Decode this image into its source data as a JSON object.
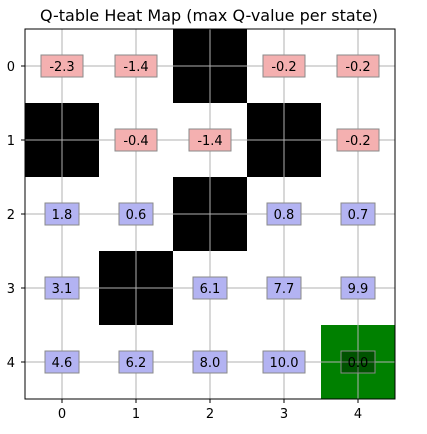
{
  "chart_data": {
    "type": "heatmap",
    "title": "Q-table Heat Map (max Q-value per state)",
    "xlabel": "",
    "ylabel": "",
    "x_ticks": [
      "0",
      "1",
      "2",
      "3",
      "4"
    ],
    "y_ticks": [
      "0",
      "1",
      "2",
      "3",
      "4"
    ],
    "grid": true,
    "colors": {
      "wall": "#000000",
      "goal": "#008000",
      "negative_box": "#f4b0b0",
      "positive_box": "#b3b3f2",
      "grid_line": "#b0b0b0"
    },
    "cells": [
      {
        "row": 0,
        "col": 0,
        "kind": "value",
        "label": "-2.3",
        "value": -2.3
      },
      {
        "row": 0,
        "col": 1,
        "kind": "value",
        "label": "-1.4",
        "value": -1.4
      },
      {
        "row": 0,
        "col": 2,
        "kind": "wall"
      },
      {
        "row": 0,
        "col": 3,
        "kind": "value",
        "label": "-0.2",
        "value": -0.2
      },
      {
        "row": 0,
        "col": 4,
        "kind": "value",
        "label": "-0.2",
        "value": -0.2
      },
      {
        "row": 1,
        "col": 0,
        "kind": "wall"
      },
      {
        "row": 1,
        "col": 1,
        "kind": "value",
        "label": "-0.4",
        "value": -0.4
      },
      {
        "row": 1,
        "col": 2,
        "kind": "value",
        "label": "-1.4",
        "value": -1.4
      },
      {
        "row": 1,
        "col": 3,
        "kind": "wall"
      },
      {
        "row": 1,
        "col": 4,
        "kind": "value",
        "label": "-0.2",
        "value": -0.2
      },
      {
        "row": 2,
        "col": 0,
        "kind": "value",
        "label": "1.8",
        "value": 1.8
      },
      {
        "row": 2,
        "col": 1,
        "kind": "value",
        "label": "0.6",
        "value": 0.6
      },
      {
        "row": 2,
        "col": 2,
        "kind": "wall"
      },
      {
        "row": 2,
        "col": 3,
        "kind": "value",
        "label": "0.8",
        "value": 0.8
      },
      {
        "row": 2,
        "col": 4,
        "kind": "value",
        "label": "0.7",
        "value": 0.7
      },
      {
        "row": 3,
        "col": 0,
        "kind": "value",
        "label": "3.1",
        "value": 3.1
      },
      {
        "row": 3,
        "col": 1,
        "kind": "wall"
      },
      {
        "row": 3,
        "col": 2,
        "kind": "value",
        "label": "6.1",
        "value": 6.1
      },
      {
        "row": 3,
        "col": 3,
        "kind": "value",
        "label": "7.7",
        "value": 7.7
      },
      {
        "row": 3,
        "col": 4,
        "kind": "value",
        "label": "9.9",
        "value": 9.9
      },
      {
        "row": 4,
        "col": 0,
        "kind": "value",
        "label": "4.6",
        "value": 4.6
      },
      {
        "row": 4,
        "col": 1,
        "kind": "value",
        "label": "6.2",
        "value": 6.2
      },
      {
        "row": 4,
        "col": 2,
        "kind": "value",
        "label": "8.0",
        "value": 8.0
      },
      {
        "row": 4,
        "col": 3,
        "kind": "value",
        "label": "10.0",
        "value": 10.0
      },
      {
        "row": 4,
        "col": 4,
        "kind": "goal",
        "label": "0.0",
        "value": 0.0
      }
    ]
  }
}
